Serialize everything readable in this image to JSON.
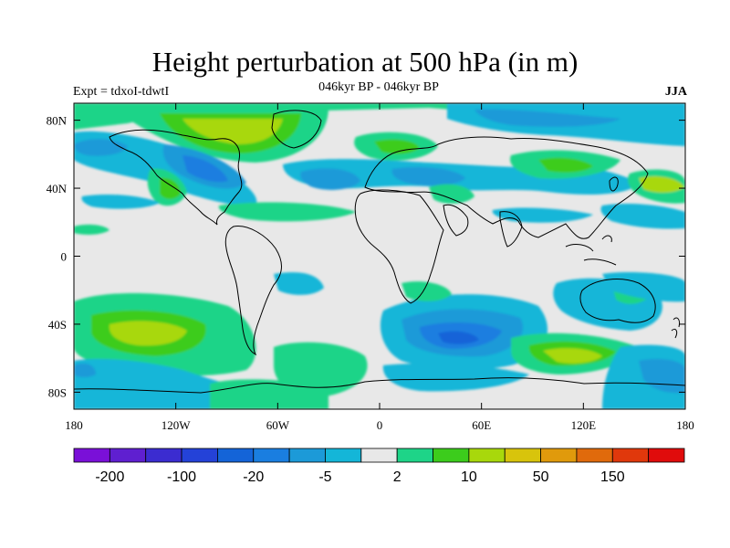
{
  "title": "Height perturbation at 500 hPa (in m)",
  "subtitle": "046kyr BP - 046kyr BP",
  "left_label": "Expt = tdxoI-tdwtI",
  "right_label": "JJA",
  "map": {
    "projection": "cylindrical-equidistant",
    "lon_range": [
      -180,
      180
    ],
    "lat_range": [
      -90,
      90
    ],
    "background_color": "#e8e8e8",
    "coastline_color": "#000000",
    "lon_ticks": [
      "180",
      "120W",
      "60W",
      "0",
      "60E",
      "120E",
      "180"
    ],
    "lat_ticks": [
      "80N",
      "40N",
      "0",
      "40S",
      "80S"
    ]
  },
  "colorbar": {
    "colors": [
      "#7a10d8",
      "#5f1fd0",
      "#3b2cd0",
      "#2442d8",
      "#1464d8",
      "#1a7ee0",
      "#1c9ad8",
      "#14b6d8",
      "#e8e8e8",
      "#1ed488",
      "#3ccc1c",
      "#a8d80c",
      "#d8c40c",
      "#e09a0c",
      "#e06a0c",
      "#e0380c",
      "#e00c0c"
    ],
    "labels": [
      {
        "text": "-200",
        "after_box": 1
      },
      {
        "text": "-100",
        "after_box": 3
      },
      {
        "text": "-20",
        "after_box": 5
      },
      {
        "text": "-5",
        "after_box": 7
      },
      {
        "text": "2",
        "after_box": 9
      },
      {
        "text": "10",
        "after_box": 11
      },
      {
        "text": "50",
        "after_box": 13
      },
      {
        "text": "150",
        "after_box": 15
      }
    ]
  }
}
